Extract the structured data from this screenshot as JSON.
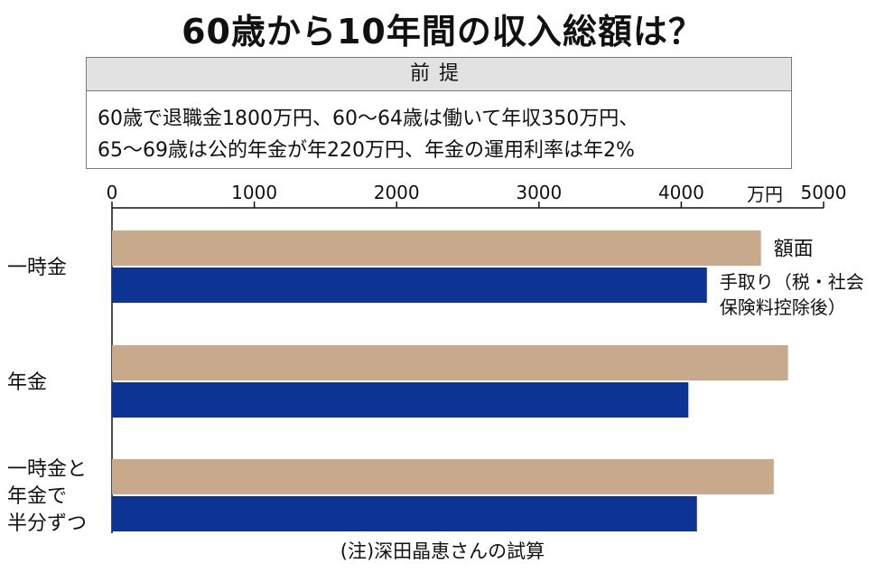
{
  "title": "60歳から10年間の収入総額は？",
  "premise": {
    "heading": "前提",
    "lines": [
      "60歳で退職金1800万円、60～64歳は働いて年収350万円、",
      "65～69歳は公的年金が年220万円、年金の運用利率は年2%"
    ]
  },
  "note": "(注)深田晶恵さんの試算",
  "chart_data": {
    "type": "bar",
    "orientation": "horizontal",
    "unit": "万円",
    "xlim": [
      0,
      5000
    ],
    "ticks": [
      "0",
      "1000",
      "2000",
      "3000",
      "4000",
      "5000"
    ],
    "categories": [
      [
        "一時金"
      ],
      [
        "年金"
      ],
      [
        "一時金と",
        "年金で",
        "半分ずつ"
      ]
    ],
    "series": [
      {
        "name": "額面",
        "color": "#c9a98c",
        "values": [
          4560,
          4750,
          4650
        ]
      },
      {
        "name_lines": [
          "手取り（税・社会",
          "保険料控除後）"
        ],
        "color": "#0d3494",
        "values": [
          4180,
          4050,
          4110
        ]
      }
    ],
    "grid": false,
    "legend": "inline-right-of-first-bars"
  }
}
